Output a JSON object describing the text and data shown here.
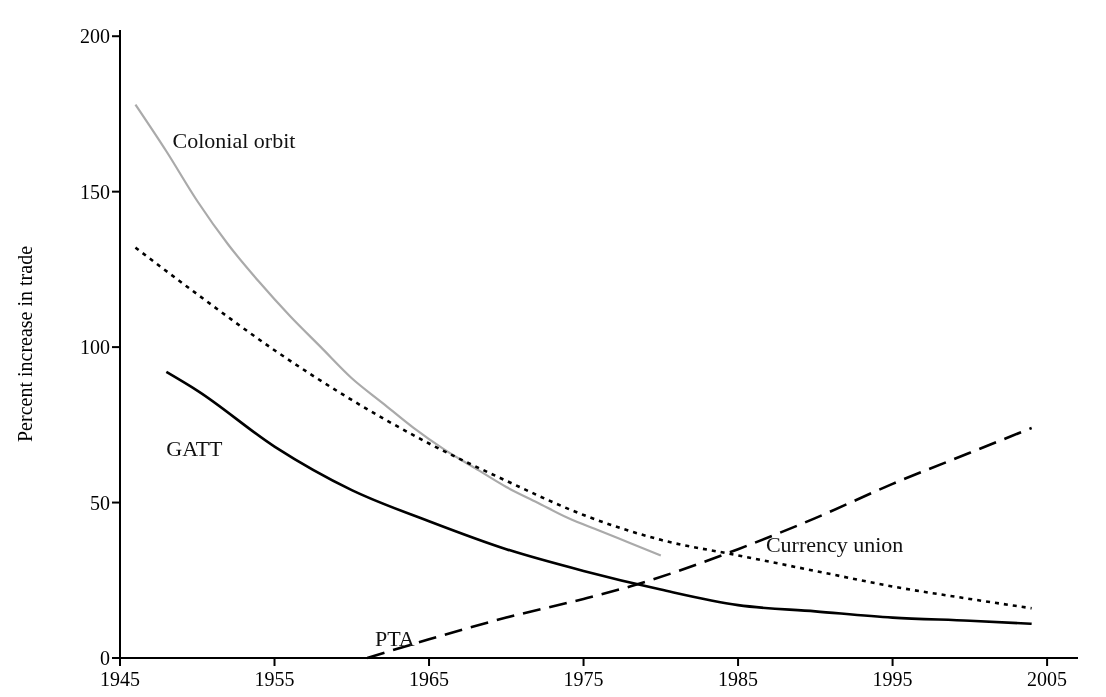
{
  "chart_data": {
    "type": "line",
    "ylabel": "Percent increase in trade",
    "xlim": [
      1945,
      2007
    ],
    "xticks": [
      1945,
      1955,
      1965,
      1975,
      1985,
      1995,
      2005
    ],
    "ylim": [
      0,
      202
    ],
    "yticks": [
      0,
      50,
      100,
      150,
      200
    ],
    "grid": false,
    "marker": "none",
    "series": [
      {
        "name": "Colonial orbit",
        "color": "#aaaaaa",
        "line_style": "solid",
        "x": [
          1946,
          1948,
          1950,
          1952,
          1954,
          1956,
          1958,
          1960,
          1962,
          1964,
          1966,
          1968,
          1970,
          1972,
          1974,
          1976,
          1978,
          1980
        ],
        "values": [
          178,
          163,
          147,
          133,
          121,
          110,
          100,
          90,
          82,
          74,
          67,
          61,
          55,
          50,
          45,
          41,
          37,
          33
        ]
      },
      {
        "name": "Currency union",
        "color": "#000000",
        "line_style": "dotted",
        "x": [
          1946,
          1950,
          1955,
          1960,
          1965,
          1970,
          1975,
          1980,
          1985,
          1990,
          1995,
          2000,
          2004
        ],
        "values": [
          132,
          117,
          99,
          83,
          69,
          57,
          46,
          38,
          33,
          28,
          23,
          19,
          16
        ]
      },
      {
        "name": "GATT",
        "color": "#000000",
        "line_style": "solid",
        "x": [
          1948,
          1950,
          1955,
          1960,
          1965,
          1970,
          1975,
          1980,
          1985,
          1990,
          1995,
          2000,
          2004
        ],
        "values": [
          92,
          86,
          68,
          54,
          44,
          35,
          28,
          22,
          17,
          15,
          13,
          12,
          11
        ]
      },
      {
        "name": "PTA",
        "color": "#000000",
        "line_style": "dashed",
        "x": [
          1961,
          1965,
          1970,
          1975,
          1978,
          1985,
          1990,
          1995,
          2000,
          2004
        ],
        "values": [
          0,
          6,
          13,
          19,
          23,
          35,
          45,
          56,
          66,
          74
        ]
      }
    ]
  }
}
